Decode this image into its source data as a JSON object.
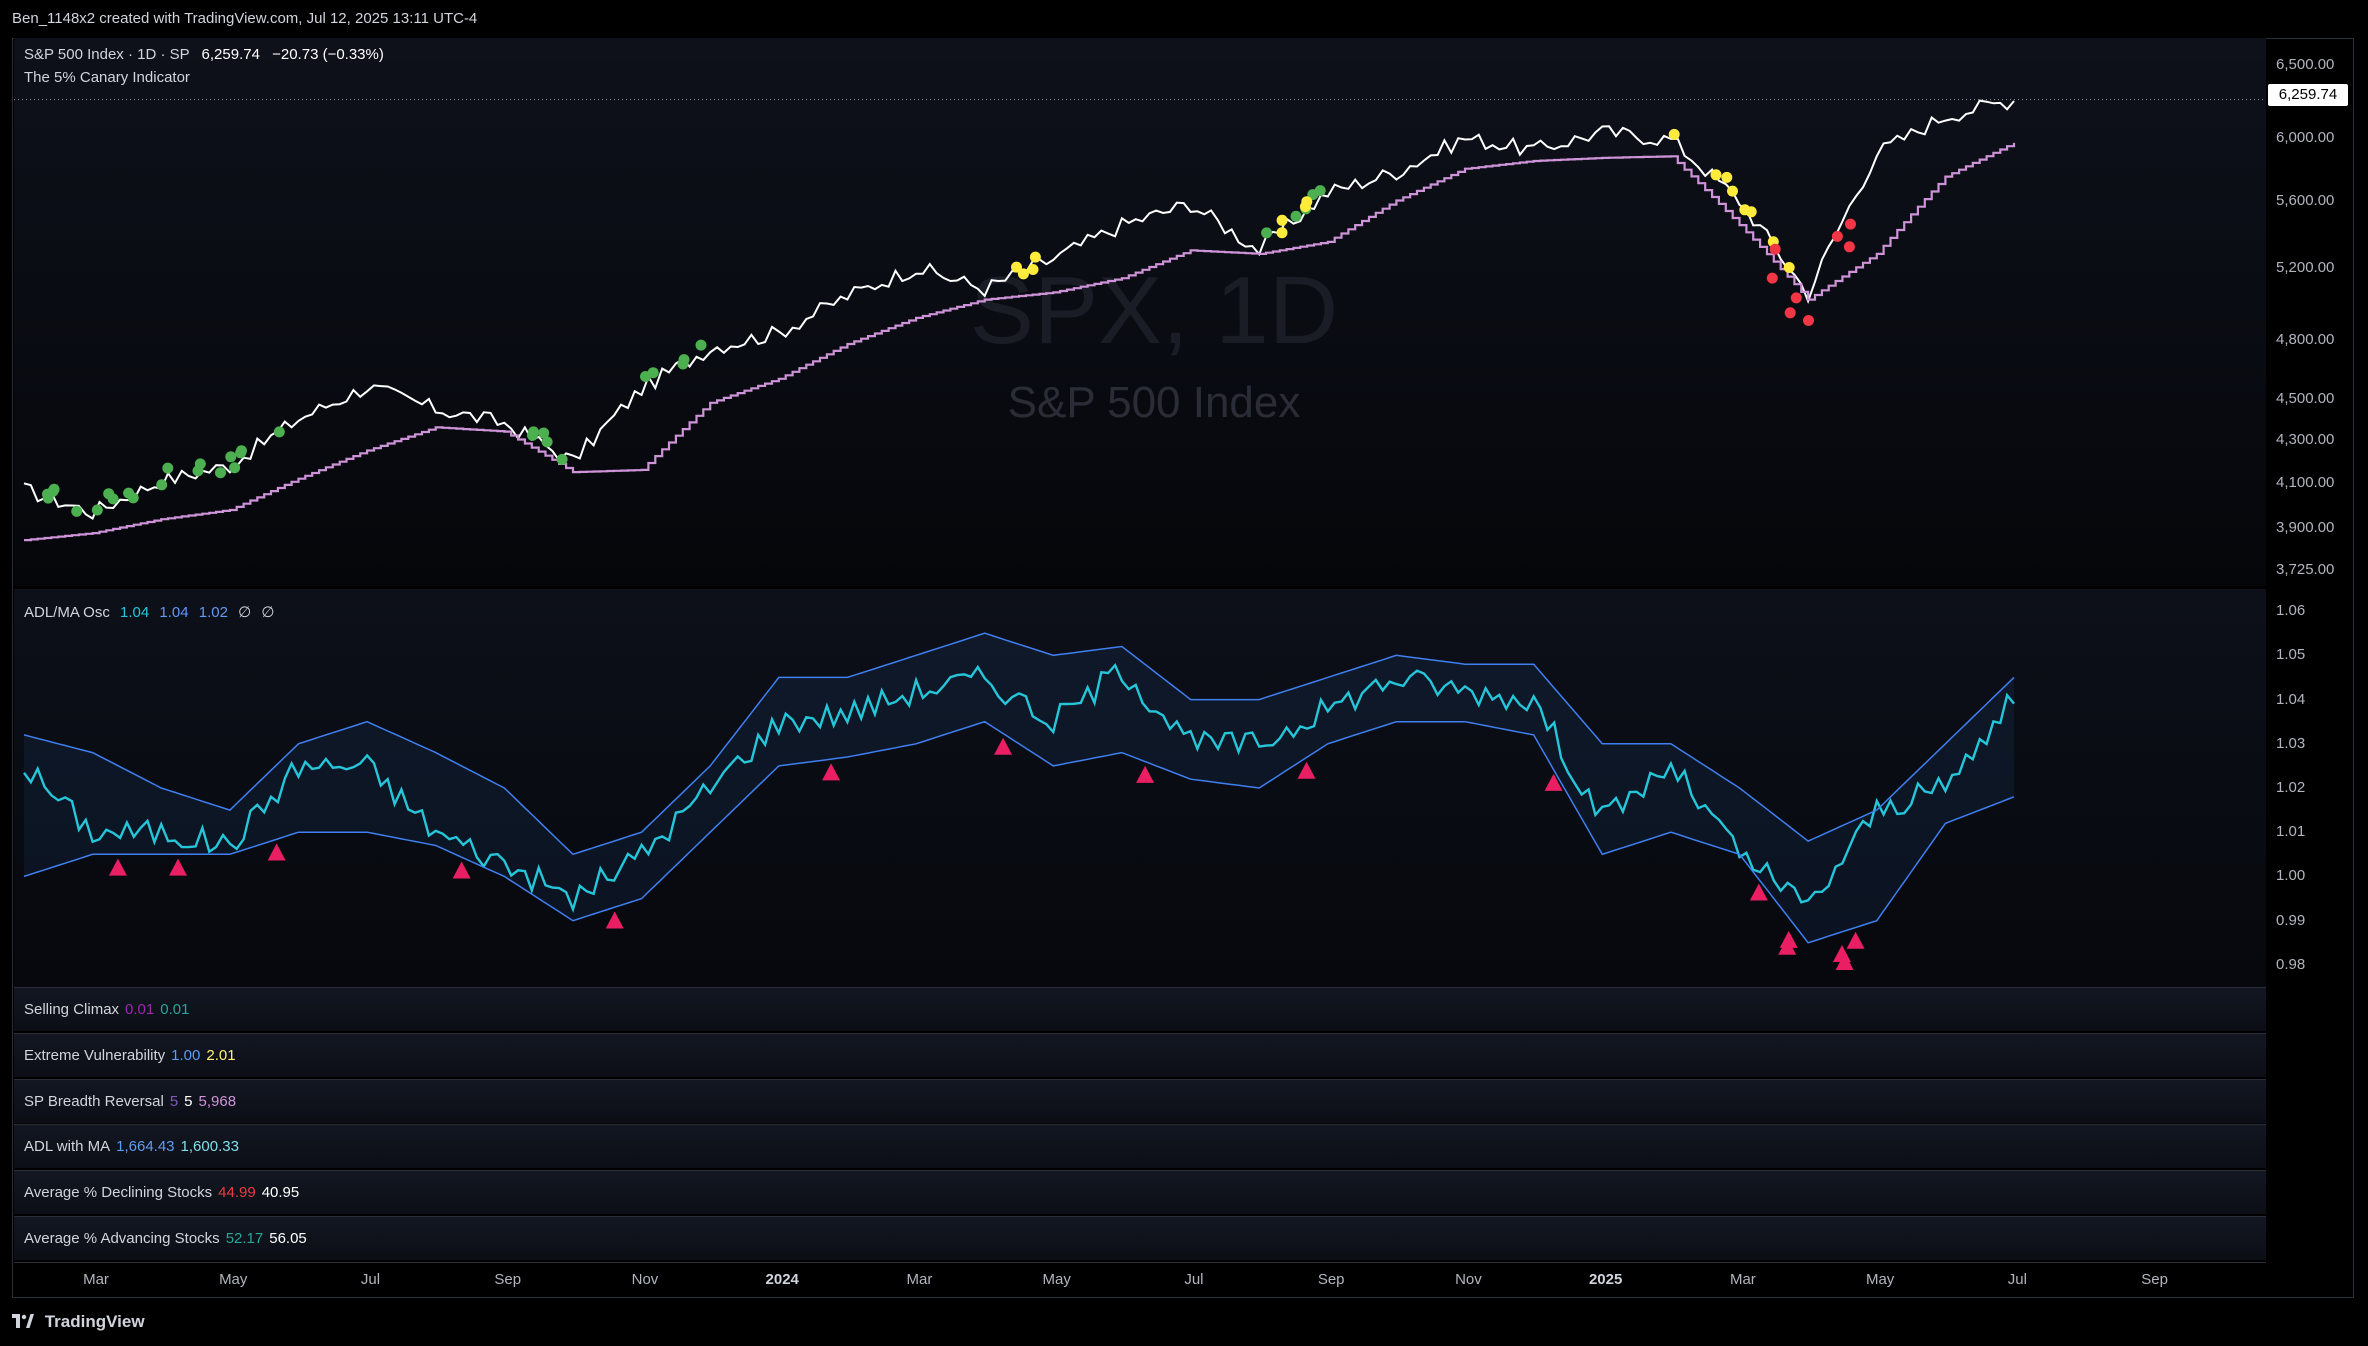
{
  "header": {
    "title": "Ben_1148x2 created with TradingView.com, Jul 12, 2025 13:11 UTC-4"
  },
  "main_pane": {
    "symbol_line": "S&P 500 Index · 1D · SP",
    "last_price": "6,259.74",
    "change": "−20.73 (−0.33%)",
    "indicator_name": "The 5% Canary Indicator",
    "watermark_symbol": "SPX, 1D",
    "watermark_name": "S&P 500 Index",
    "price_tag": "6,259.74",
    "y_ticks": [
      "6,500.00",
      "6,000.00",
      "5,600.00",
      "5,200.00",
      "4,800.00",
      "4,500.00",
      "4,300.00",
      "4,100.00",
      "3,900.00",
      "3,725.00"
    ]
  },
  "osc_pane": {
    "name": "ADL/MA Osc",
    "v1": "1.04",
    "v2": "1.04",
    "v3": "1.02",
    "v4": "∅",
    "v5": "∅",
    "y_ticks": [
      "1.06",
      "1.05",
      "1.04",
      "1.03",
      "1.02",
      "1.01",
      "1.00",
      "0.99",
      "0.98"
    ]
  },
  "sub_panes": [
    {
      "name": "Selling Climax",
      "values": [
        {
          "text": "0.01",
          "color": "#9c27b0"
        },
        {
          "text": "0.01",
          "color": "#26a69a"
        }
      ]
    },
    {
      "name": "Extreme Vulnerability",
      "values": [
        {
          "text": "1.00",
          "color": "#5b9cf6"
        },
        {
          "text": "2.01",
          "color": "#fff176"
        }
      ]
    },
    {
      "name": "SP Breadth Reversal",
      "values": [
        {
          "text": "5",
          "color": "#7e57c2"
        },
        {
          "text": "5",
          "color": "#ffffff"
        },
        {
          "text": "5,968",
          "color": "#ce93d8"
        }
      ]
    },
    {
      "name": "ADL with MA",
      "values": [
        {
          "text": "1,664.43",
          "color": "#5b9cf6"
        },
        {
          "text": "1,600.33",
          "color": "#80deea"
        }
      ]
    },
    {
      "name": "Average % Declining Stocks",
      "values": [
        {
          "text": "44.99",
          "color": "#f23645"
        },
        {
          "text": "40.95",
          "color": "#ffffff"
        }
      ]
    },
    {
      "name": "Average % Advancing Stocks",
      "values": [
        {
          "text": "52.17",
          "color": "#26a69a"
        },
        {
          "text": "56.05",
          "color": "#ffffff"
        }
      ]
    }
  ],
  "x_axis": {
    "ticks": [
      {
        "label": "Mar",
        "bold": false
      },
      {
        "label": "May",
        "bold": false
      },
      {
        "label": "Jul",
        "bold": false
      },
      {
        "label": "Sep",
        "bold": false
      },
      {
        "label": "Nov",
        "bold": false
      },
      {
        "label": "2024",
        "bold": true
      },
      {
        "label": "Mar",
        "bold": false
      },
      {
        "label": "May",
        "bold": false
      },
      {
        "label": "Jul",
        "bold": false
      },
      {
        "label": "Sep",
        "bold": false
      },
      {
        "label": "Nov",
        "bold": false
      },
      {
        "label": "2025",
        "bold": true
      },
      {
        "label": "Mar",
        "bold": false
      },
      {
        "label": "May",
        "bold": false
      },
      {
        "label": "Jul",
        "bold": false
      },
      {
        "label": "Sep",
        "bold": false
      }
    ]
  },
  "footer": {
    "brand": "TradingView"
  },
  "chart_data": [
    {
      "type": "line",
      "title": "S&P 500 Index · 1D · SP",
      "x": [
        "2023-02",
        "2023-03",
        "2023-04",
        "2023-05",
        "2023-06",
        "2023-07",
        "2023-08",
        "2023-09",
        "2023-10",
        "2023-11",
        "2023-12",
        "2024-01",
        "2024-02",
        "2024-03",
        "2024-04",
        "2024-05",
        "2024-06",
        "2024-07",
        "2024-08",
        "2024-09",
        "2024-10",
        "2024-11",
        "2024-12",
        "2025-01",
        "2025-02",
        "2025-03",
        "2025-04",
        "2025-05",
        "2025-06",
        "2025-07"
      ],
      "series": [
        {
          "name": "",
          "color": "#ffffff",
          "values": [
            4070,
            3970,
            4110,
            4180,
            4400,
            4560,
            4450,
            4380,
            4200,
            4550,
            4760,
            4840,
            5040,
            5200,
            5080,
            5250,
            5450,
            5580,
            5300,
            5650,
            5780,
            6000,
            5920,
            6040,
            5990,
            5600,
            5050,
            5900,
            6150,
            6259.74
          ]
        },
        {
          "name": "",
          "color": "#ce93d8",
          "values": [
            3850,
            3880,
            3940,
            3980,
            4120,
            4250,
            4360,
            4340,
            4150,
            4160,
            4480,
            4600,
            4780,
            4920,
            5020,
            5060,
            5140,
            5300,
            5280,
            5350,
            5600,
            5800,
            5850,
            5870,
            5880,
            5450,
            5020,
            5280,
            5750,
            5968
          ]
        }
      ],
      "scale": "log",
      "ylim": [
        3660,
        6700
      ],
      "grid": false,
      "signals": {
        "green": [
          "2023-02",
          "2023-03",
          "2023-04",
          "2023-05",
          "2023-09",
          "2023-11",
          "2024-08"
        ],
        "yellow": [
          "2024-04",
          "2024-08",
          "2025-02",
          "2025-03"
        ],
        "red": [
          "2025-03",
          "2025-04"
        ]
      }
    },
    {
      "type": "line",
      "title": "ADL/MA Osc",
      "x": [
        "2023-02",
        "2023-03",
        "2023-04",
        "2023-05",
        "2023-06",
        "2023-07",
        "2023-08",
        "2023-09",
        "2023-10",
        "2023-11",
        "2023-12",
        "2024-01",
        "2024-02",
        "2024-03",
        "2024-04",
        "2024-05",
        "2024-06",
        "2024-07",
        "2024-08",
        "2024-09",
        "2024-10",
        "2024-11",
        "2024-12",
        "2025-01",
        "2025-02",
        "2025-03",
        "2025-04",
        "2025-05",
        "2025-06",
        "2025-07"
      ],
      "series": [
        {
          "name": "",
          "color": "#26c6da",
          "values": [
            1.025,
            1.01,
            1.01,
            1.007,
            1.025,
            1.025,
            1.01,
            1.003,
            0.995,
            1.005,
            1.02,
            1.035,
            1.037,
            1.042,
            1.045,
            1.035,
            1.047,
            1.03,
            1.03,
            1.038,
            1.045,
            1.042,
            1.04,
            1.013,
            1.025,
            1.005,
            0.993,
            1.015,
            1.02,
            1.04
          ]
        },
        {
          "name": "",
          "color": "#3f7ff0",
          "values": [
            1.032,
            1.028,
            1.02,
            1.015,
            1.03,
            1.035,
            1.028,
            1.02,
            1.005,
            1.01,
            1.025,
            1.045,
            1.045,
            1.05,
            1.055,
            1.05,
            1.052,
            1.04,
            1.04,
            1.045,
            1.05,
            1.048,
            1.048,
            1.03,
            1.03,
            1.02,
            1.008,
            1.015,
            1.03,
            1.045
          ]
        },
        {
          "name": "",
          "color": "#3f7ff0",
          "values": [
            1.0,
            1.005,
            1.005,
            1.005,
            1.01,
            1.01,
            1.007,
            1.0,
            0.99,
            0.995,
            1.01,
            1.025,
            1.027,
            1.03,
            1.035,
            1.025,
            1.028,
            1.022,
            1.02,
            1.03,
            1.035,
            1.035,
            1.032,
            1.005,
            1.01,
            1.005,
            0.985,
            0.99,
            1.012,
            1.018
          ]
        }
      ],
      "ylim": [
        0.975,
        1.065
      ],
      "signals": {
        "triangles": [
          "2023-03",
          "2023-04",
          "2023-05",
          "2023-08",
          "2023-10",
          "2024-01",
          "2024-04",
          "2024-06",
          "2024-08",
          "2024-12",
          "2025-03",
          "2025-04"
        ]
      }
    }
  ]
}
